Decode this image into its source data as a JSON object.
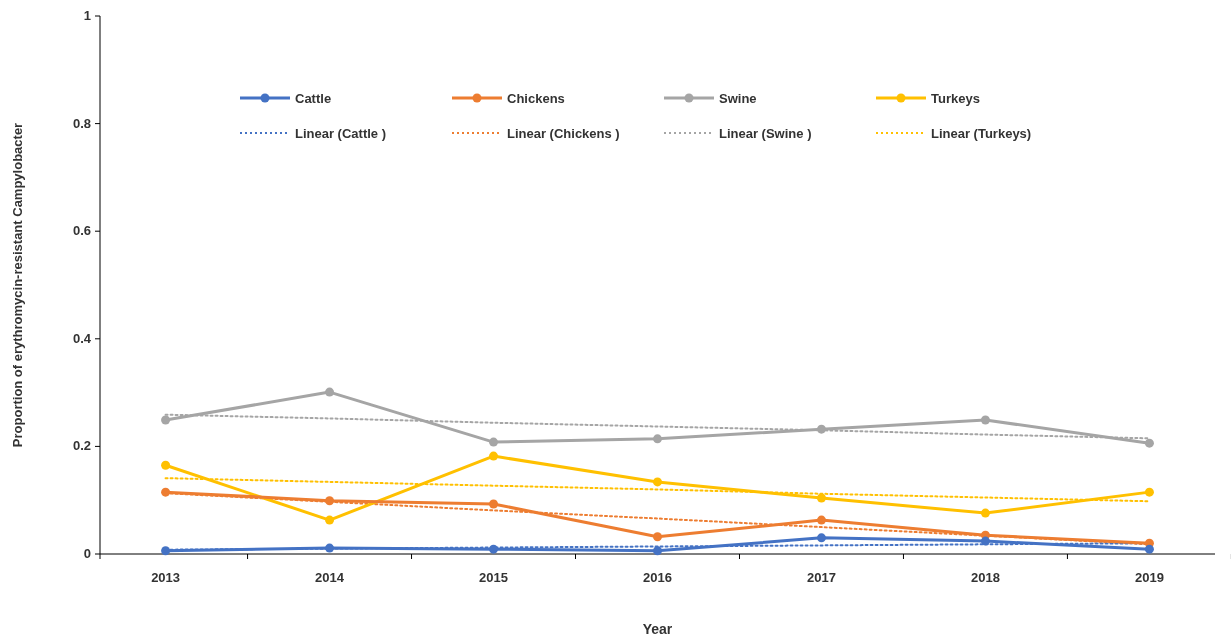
{
  "chart_data": {
    "type": "line",
    "xlabel": "Year",
    "ylabel": "Proportion of erythromycin-resistant Campylobacter",
    "categories": [
      "2013",
      "2014",
      "2015",
      "2016",
      "2017",
      "2018",
      "2019"
    ],
    "ylim": [
      0,
      1
    ],
    "yticks": [
      0,
      0.2,
      0.4,
      0.6,
      0.8,
      1
    ],
    "grid": false,
    "legend": "top",
    "marker": "circle",
    "line_style": "solid",
    "series": [
      {
        "name": "Cattle",
        "color": "#4472c4",
        "values": [
          0.006,
          0.011,
          0.009,
          0.006,
          0.03,
          0.024,
          0.009
        ]
      },
      {
        "name": "Chickens",
        "color": "#ed7d31",
        "values": [
          0.115,
          0.099,
          0.093,
          0.032,
          0.063,
          0.035,
          0.02
        ]
      },
      {
        "name": "Swine",
        "color": "#a5a5a5",
        "values": [
          0.249,
          0.301,
          0.208,
          0.214,
          0.232,
          0.249,
          0.206
        ]
      },
      {
        "name": "Turkeys",
        "color": "#ffc000",
        "values": [
          0.165,
          0.063,
          0.182,
          0.134,
          0.104,
          0.076,
          0.115
        ]
      },
      {
        "name": "Linear (Cattle )",
        "type": "line",
        "color": "#4472c4",
        "marker": "none",
        "line_style": "dotted",
        "values": [
          0.008,
          0.01,
          0.012,
          0.014,
          0.016,
          0.018,
          0.02
        ]
      },
      {
        "name": "Linear (Chickens )",
        "type": "line",
        "color": "#ed7d31",
        "marker": "none",
        "line_style": "dotted",
        "values": [
          0.113,
          0.097,
          0.081,
          0.066,
          0.05,
          0.034,
          0.018
        ]
      },
      {
        "name": "Linear (Swine )",
        "type": "line",
        "color": "#a5a5a5",
        "marker": "none",
        "line_style": "dotted",
        "values": [
          0.259,
          0.252,
          0.244,
          0.237,
          0.23,
          0.222,
          0.215
        ]
      },
      {
        "name": "Linear (Turkeys)",
        "type": "line",
        "color": "#ffc000",
        "marker": "none",
        "line_style": "dotted",
        "values": [
          0.141,
          0.134,
          0.127,
          0.12,
          0.112,
          0.105,
          0.098
        ]
      }
    ]
  }
}
